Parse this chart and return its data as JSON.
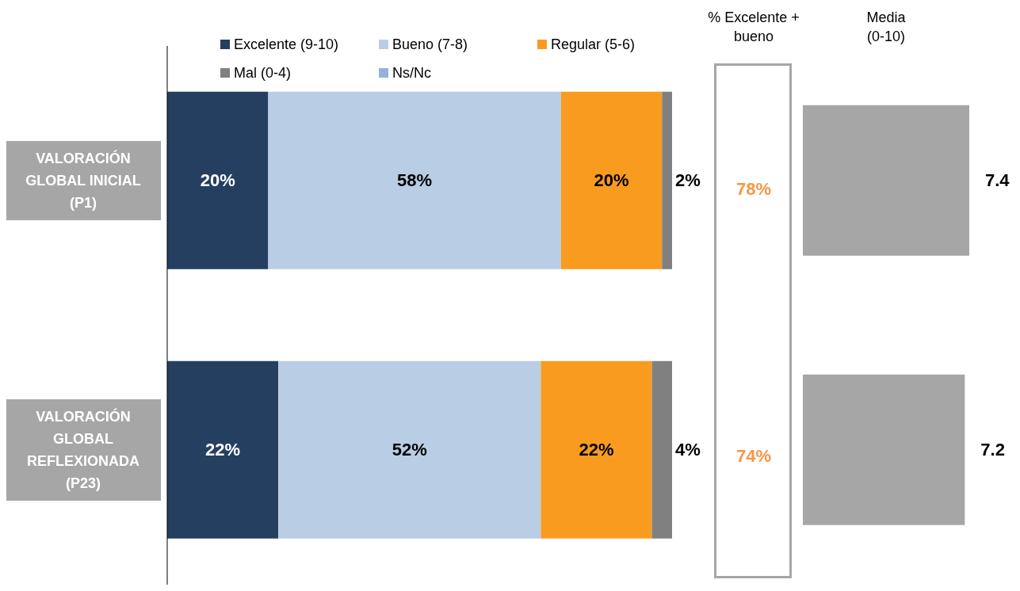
{
  "chart_data": [
    {
      "type": "bar",
      "orientation": "horizontal",
      "stacked": true,
      "categories": [
        "VALORACIÓN GLOBAL INICIAL (P1)",
        "VALORACIÓN GLOBAL REFLEXIONADA (P23)"
      ],
      "legend": "top",
      "series": [
        {
          "name": "Excelente (9-10)",
          "color": "#243f60",
          "values": [
            20,
            22
          ],
          "value_labels": [
            "20%",
            "22%"
          ]
        },
        {
          "name": "Bueno (7-8)",
          "color": "#b9cde5",
          "values": [
            58,
            52
          ],
          "value_labels": [
            "58%",
            "52%"
          ]
        },
        {
          "name": "Regular (5-6)",
          "color": "#f99b1f",
          "values": [
            20,
            22
          ],
          "value_labels": [
            "20%",
            "22%"
          ]
        },
        {
          "name": "Mal (0-4)",
          "color": "#808080",
          "values": [
            2,
            4
          ],
          "value_labels": [
            "2%",
            "4%"
          ]
        },
        {
          "name": "Ns/Nc",
          "color": "#95b3d7",
          "values": [
            0,
            0
          ],
          "value_labels": [
            null,
            null
          ]
        }
      ]
    },
    {
      "type": "other",
      "title": "% Excelente + bueno",
      "annotations": [
        "78%",
        "74%"
      ]
    },
    {
      "type": "bar",
      "orientation": "horizontal",
      "title": "Media (0-10)",
      "categories": [
        null,
        null
      ],
      "data_labels": true,
      "series": [
        {
          "color": "#a6a6a6",
          "values": [
            7.4,
            7.2
          ]
        }
      ]
    }
  ]
}
